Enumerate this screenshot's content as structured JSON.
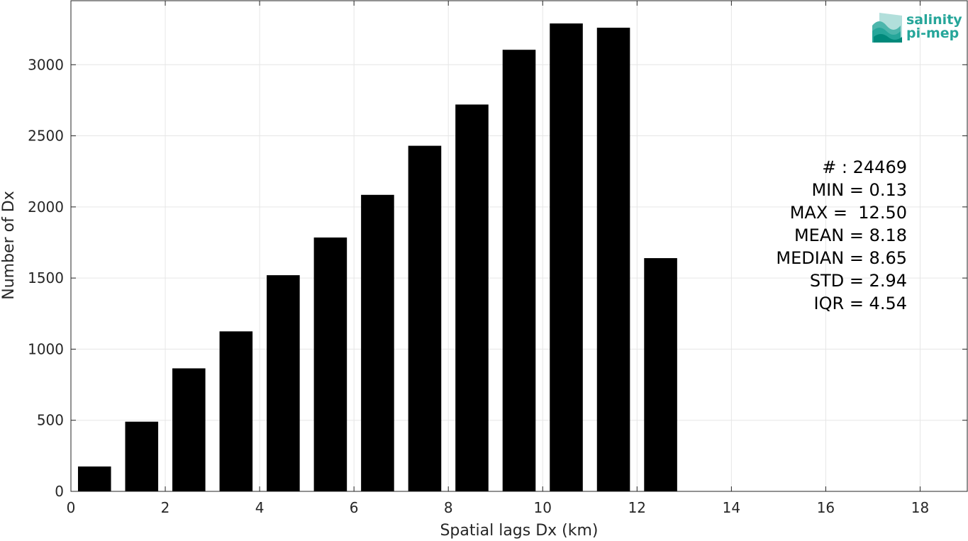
{
  "chart_data": {
    "type": "bar",
    "title": "",
    "xlabel": "Spatial lags Dx (km)",
    "ylabel": "Number of Dx",
    "xlim": [
      0,
      19
    ],
    "ylim": [
      0,
      3450
    ],
    "x_ticks": [
      0,
      2,
      4,
      6,
      8,
      10,
      12,
      14,
      16,
      18
    ],
    "y_ticks": [
      0,
      500,
      1000,
      1500,
      2000,
      2500,
      3000
    ],
    "grid": true,
    "bar_color": "#000000",
    "bar_width": 0.7,
    "x": [
      0.5,
      1.5,
      2.5,
      3.5,
      4.5,
      5.5,
      6.5,
      7.5,
      8.5,
      9.5,
      10.5,
      11.5,
      12.5
    ],
    "values": [
      175,
      490,
      865,
      1125,
      1520,
      1785,
      2085,
      2430,
      2720,
      3105,
      3290,
      3260,
      1640
    ]
  },
  "stats": {
    "lines": [
      "# : 24469",
      "MIN = 0.13",
      "MAX =  12.50",
      "MEAN = 8.18",
      "MEDIAN = 8.65",
      "STD = 2.94",
      "IQR = 4.54"
    ]
  },
  "logo": {
    "line1": "salinity",
    "line2": "pi-mep",
    "icon": "salinity-waves-icon",
    "color": "#26a69a"
  }
}
